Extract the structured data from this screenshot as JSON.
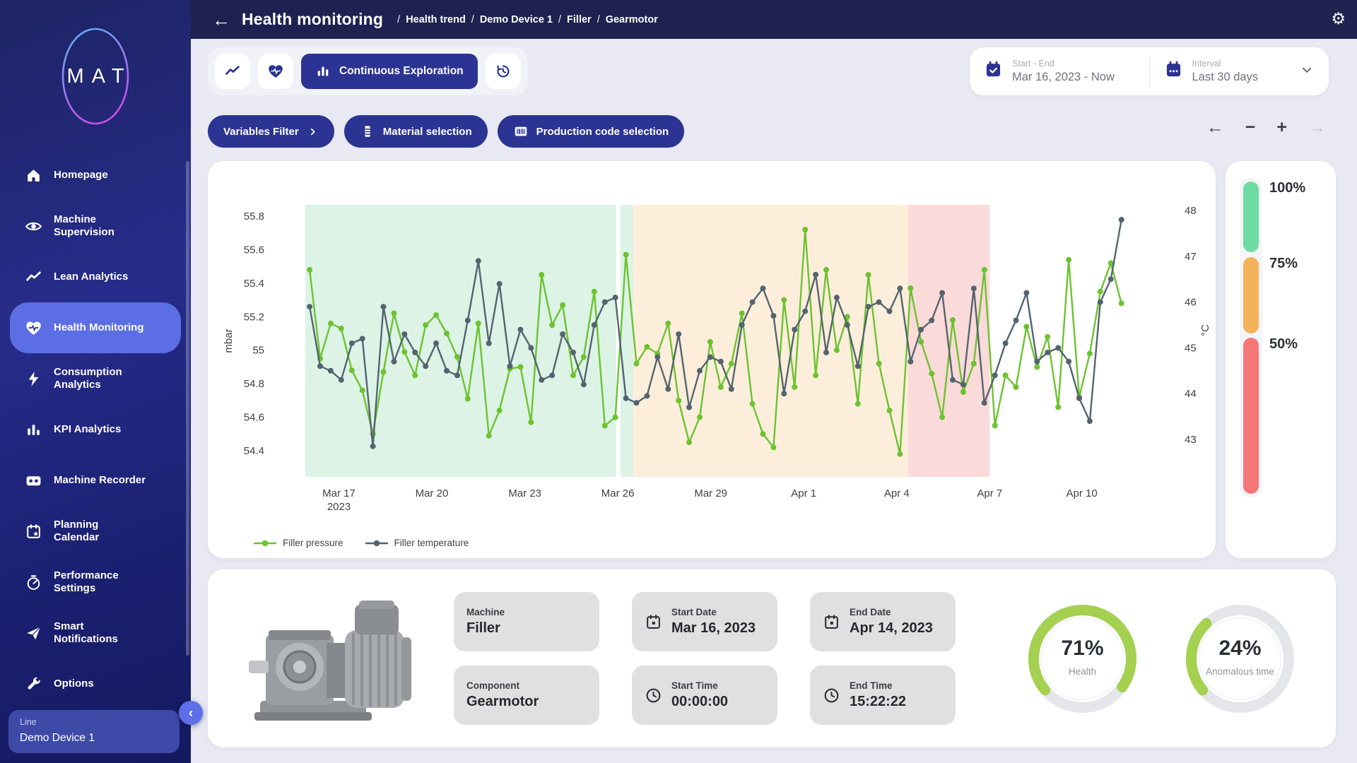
{
  "colors": {
    "accent_blue": "#2b3492",
    "active_nav": "#5b6ee4",
    "header_bg": "#1d2250",
    "page_bg": "#e8e9f2",
    "series_pressure": "#6cc32f",
    "series_temperature": "#54646f",
    "band_green": "#dcf3e6",
    "band_orange": "#fdeedb",
    "band_pink": "#fbdada",
    "gauge_green": "#a4d150",
    "gauge_track": "#e4e6ea"
  },
  "header": {
    "title": "Health monitoring",
    "breadcrumbs": [
      "Health trend",
      "Demo Device 1",
      "Filler",
      "Gearmotor"
    ],
    "back_glyph": "←",
    "gear_glyph": "⚙"
  },
  "sidebar": {
    "logo": "MAT",
    "items": [
      {
        "name": "homepage",
        "label": "Homepage",
        "icon": "home-icon",
        "active": false
      },
      {
        "name": "machine-supervision",
        "label": "Machine\nSupervision",
        "icon": "eye-icon",
        "active": false
      },
      {
        "name": "lean-analytics",
        "label": "Lean Analytics",
        "icon": "trend-icon",
        "active": false
      },
      {
        "name": "health-monitoring",
        "label": "Health Monitoring",
        "icon": "heart-pulse-icon",
        "active": true
      },
      {
        "name": "consumption-analytics",
        "label": "Consumption\nAnalytics",
        "icon": "bolt-icon",
        "active": false
      },
      {
        "name": "kpi-analytics",
        "label": "KPI Analytics",
        "icon": "kpi-bars-icon",
        "active": false
      },
      {
        "name": "machine-recorder",
        "label": "Machine Recorder",
        "icon": "cassette-icon",
        "active": false
      },
      {
        "name": "planning-calendar",
        "label": "Planning\nCalendar",
        "icon": "calendar-icon",
        "active": false
      },
      {
        "name": "performance-settings",
        "label": "Performance\nSettings",
        "icon": "speedometer-icon",
        "active": false
      },
      {
        "name": "smart-notifications",
        "label": "Smart\nNotifications",
        "icon": "paper-plane-icon",
        "active": false
      },
      {
        "name": "options",
        "label": "Options",
        "icon": "wrench-icon",
        "active": false
      }
    ],
    "device_selector": {
      "label": "Line",
      "value": "Demo Device 1"
    },
    "collapse_glyph": "‹"
  },
  "toolbar": {
    "buttons": [
      {
        "name": "trend-view",
        "icon": "trend-icon",
        "label": "",
        "active": false
      },
      {
        "name": "health-view",
        "icon": "heart-pulse-icon",
        "label": "",
        "active": false
      },
      {
        "name": "continuous-exploration",
        "icon": "bar-chart-icon",
        "label": "Continuous Exploration",
        "active": true
      },
      {
        "name": "history",
        "icon": "history-icon",
        "label": "",
        "active": false
      }
    ]
  },
  "date_controls": {
    "start_end": {
      "label": "Start - End",
      "value": "Mar 16, 2023 - Now",
      "icon": "calendar-check-icon"
    },
    "interval": {
      "label": "Interval",
      "value": "Last 30 days",
      "icon": "calendar-interval-icon"
    }
  },
  "filters": [
    {
      "name": "variables-filter",
      "label": "Variables Filter",
      "trailing_icon": "chevron-right-icon"
    },
    {
      "name": "material-selection",
      "label": "Material selection",
      "icon": "material-icon"
    },
    {
      "name": "production-code-selection",
      "label": "Production code selection",
      "icon": "barcode-icon"
    }
  ],
  "chart_nav": {
    "buttons": [
      {
        "name": "pan-left",
        "glyph": "←",
        "enabled": true
      },
      {
        "name": "zoom-out",
        "glyph": "−",
        "enabled": true
      },
      {
        "name": "zoom-in",
        "glyph": "+",
        "enabled": true
      },
      {
        "name": "pan-right",
        "glyph": "→",
        "enabled": false
      }
    ]
  },
  "chart_data": {
    "type": "line",
    "title": "",
    "grid": false,
    "legend_position": "bottom-left",
    "x_range": [
      0.005,
      0.948
    ],
    "x_ticks": [
      {
        "label": "Mar 17",
        "sub": "2023",
        "f": 0.039
      },
      {
        "label": "Mar 20",
        "f": 0.147
      },
      {
        "label": "Mar 23",
        "f": 0.255
      },
      {
        "label": "Mar 26",
        "f": 0.363
      },
      {
        "label": "Mar 29",
        "f": 0.471
      },
      {
        "label": "Apr 1",
        "f": 0.579
      },
      {
        "label": "Apr 4",
        "f": 0.687
      },
      {
        "label": "Apr 7",
        "f": 0.795
      },
      {
        "label": "Apr 10",
        "f": 0.902
      }
    ],
    "left_axis": {
      "label": "mbar",
      "ticks": [
        55.8,
        55.6,
        55.4,
        55.2,
        55,
        54.8,
        54.6,
        54.4
      ],
      "range": [
        54.24,
        55.87
      ]
    },
    "right_axis": {
      "label": "°C",
      "ticks": [
        48,
        47,
        46,
        45,
        44,
        43
      ],
      "range": [
        42.18,
        48.12
      ]
    },
    "bands": [
      {
        "from": 0.0,
        "to": 0.361,
        "color": "#dcf3e6"
      },
      {
        "from": 0.366,
        "to": 0.381,
        "color": "#dcf3e6"
      },
      {
        "from": 0.381,
        "to": 0.7,
        "color": "#fdeedb"
      },
      {
        "from": 0.7,
        "to": 0.795,
        "color": "#fbdada"
      }
    ],
    "series": [
      {
        "name": "Filler pressure",
        "axis": "left",
        "color": "#6cc32f",
        "values": [
          55.48,
          54.95,
          55.16,
          55.13,
          54.88,
          54.76,
          54.5,
          54.87,
          55.22,
          54.99,
          54.85,
          55.15,
          55.21,
          55.1,
          54.96,
          54.71,
          55.16,
          54.49,
          54.64,
          54.89,
          54.9,
          54.57,
          55.45,
          55.15,
          55.27,
          54.85,
          54.96,
          55.35,
          54.55,
          54.6,
          55.57,
          54.92,
          55.02,
          54.98,
          55.16,
          54.7,
          54.45,
          54.6,
          55.05,
          54.78,
          54.92,
          55.22,
          54.68,
          54.5,
          54.42,
          55.3,
          54.78,
          55.72,
          54.85,
          55.48,
          55.0,
          55.2,
          54.68,
          55.45,
          54.92,
          54.64,
          54.38,
          55.37,
          55.05,
          54.86,
          54.6,
          55.18,
          54.75,
          54.92,
          55.48,
          54.55,
          54.85,
          54.78,
          55.14,
          54.9,
          55.08,
          54.66,
          55.54,
          54.72,
          54.98,
          55.35,
          55.52,
          55.28
        ]
      },
      {
        "name": "Filler temperature",
        "axis": "right",
        "color": "#54646f",
        "values": [
          45.9,
          44.6,
          44.5,
          44.3,
          45.1,
          45.2,
          42.85,
          45.9,
          44.7,
          45.3,
          44.9,
          44.6,
          45.1,
          44.5,
          44.4,
          45.6,
          46.9,
          45.1,
          46.4,
          44.6,
          45.4,
          45.0,
          44.3,
          44.4,
          45.3,
          44.9,
          44.2,
          45.5,
          46.0,
          46.1,
          43.9,
          43.8,
          43.95,
          44.8,
          44.1,
          45.3,
          43.7,
          44.5,
          44.8,
          44.7,
          44.1,
          45.5,
          46.0,
          46.3,
          45.7,
          44.0,
          45.4,
          45.8,
          46.6,
          44.9,
          46.1,
          45.5,
          44.6,
          45.9,
          46.0,
          45.8,
          46.3,
          44.7,
          45.4,
          45.6,
          46.2,
          44.3,
          44.2,
          46.3,
          43.8,
          44.4,
          45.1,
          45.6,
          46.2,
          44.7,
          44.9,
          45.0,
          44.7,
          43.9,
          43.4,
          46.0,
          46.5,
          47.8
        ]
      }
    ]
  },
  "threshold_gauge": {
    "segments": [
      {
        "label": "100%",
        "color": "#6edca2"
      },
      {
        "label": "75%",
        "color": "#f4b35a"
      },
      {
        "label": "50%",
        "color": "#f57676"
      }
    ]
  },
  "details": {
    "cards": [
      {
        "name": "machine",
        "label": "Machine",
        "value": "Filler",
        "icon": ""
      },
      {
        "name": "start-date",
        "label": "Start Date",
        "value": "Mar 16, 2023",
        "icon": "calendar-day-icon"
      },
      {
        "name": "end-date",
        "label": "End Date",
        "value": "Apr 14, 2023",
        "icon": "calendar-day-icon"
      },
      {
        "name": "component",
        "label": "Component",
        "value": "Gearmotor",
        "icon": ""
      },
      {
        "name": "start-time",
        "label": "Start Time",
        "value": "00:00:00",
        "icon": "clock-icon"
      },
      {
        "name": "end-time",
        "label": "End Time",
        "value": "15:22:22",
        "icon": "clock-icon"
      }
    ]
  },
  "gauges": [
    {
      "name": "health",
      "value": 71,
      "unit": "%",
      "label": "Health"
    },
    {
      "name": "anomalous-time",
      "value": 24,
      "unit": "%",
      "label": "Anomalous time"
    }
  ]
}
